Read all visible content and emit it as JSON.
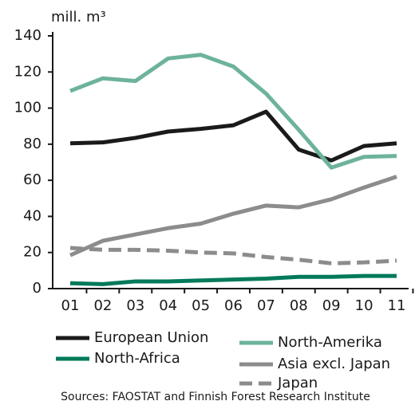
{
  "chart_data": {
    "type": "line",
    "y_label": "mill. m³",
    "source": "Sources: FAOSTAT and Finnish Forest Research Institute",
    "categories": [
      "01",
      "02",
      "03",
      "04",
      "05",
      "06",
      "07",
      "08",
      "09",
      "10",
      "11"
    ],
    "series": [
      {
        "name": "European Union",
        "color": "#1a1a1a",
        "dashed": false,
        "values": [
          80.5,
          81,
          83.5,
          87,
          88.5,
          90.5,
          98,
          77,
          71,
          79,
          80.5
        ]
      },
      {
        "name": "North-Africa",
        "color": "#007a5a",
        "dashed": false,
        "values": [
          3,
          2.5,
          4,
          4,
          4.5,
          5,
          5.5,
          6.5,
          6.5,
          7,
          7
        ]
      },
      {
        "name": "North-Amerika",
        "color": "#6db39b",
        "dashed": false,
        "values": [
          109.5,
          116.5,
          115,
          127.5,
          129.5,
          123,
          108,
          88,
          67,
          73,
          73.5
        ]
      },
      {
        "name": "Asia excl. Japan",
        "color": "#8c8c8c",
        "dashed": false,
        "values": [
          18.5,
          26.5,
          30,
          33.5,
          36,
          41.5,
          46,
          45,
          49.5,
          56,
          62
        ]
      },
      {
        "name": "Japan",
        "color": "#8c8c8c",
        "dashed": true,
        "values": [
          22.5,
          21.5,
          21.5,
          21,
          20,
          19.5,
          17.5,
          16,
          14,
          14.5,
          15.5
        ]
      }
    ],
    "ylim": [
      0,
      140
    ],
    "yticks": [
      0,
      20,
      40,
      60,
      80,
      100,
      120,
      140
    ]
  }
}
